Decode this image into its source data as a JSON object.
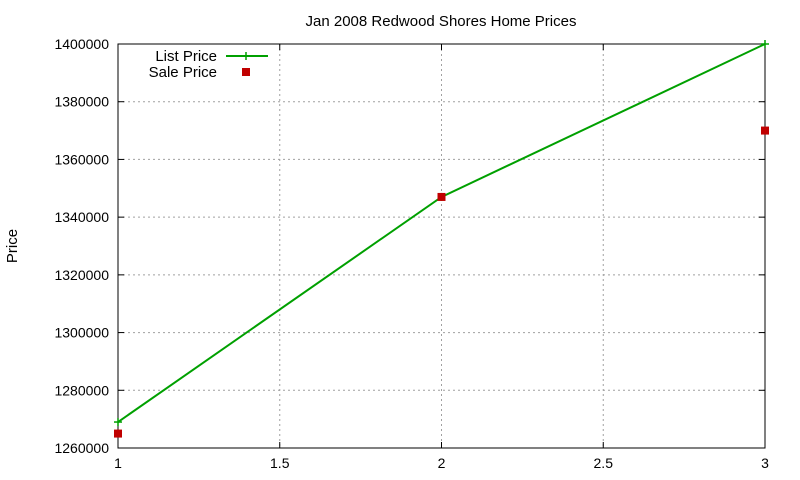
{
  "chart_data": {
    "type": "line",
    "title": "Jan 2008 Redwood Shores Home Prices",
    "xlabel": "",
    "ylabel": "Price",
    "xlim": [
      1,
      3
    ],
    "ylim": [
      1260000,
      1400000
    ],
    "x_ticks": [
      1,
      1.5,
      2,
      2.5,
      3
    ],
    "x_tick_labels": [
      "1",
      "1.5",
      "2",
      "2.5",
      "3"
    ],
    "y_ticks": [
      1260000,
      1280000,
      1300000,
      1320000,
      1340000,
      1360000,
      1380000,
      1400000
    ],
    "y_tick_labels": [
      "1260000",
      "1280000",
      "1300000",
      "1320000",
      "1340000",
      "1360000",
      "1380000",
      "1400000"
    ],
    "grid": true,
    "legend_position": "top-left",
    "series": [
      {
        "name": "List Price",
        "style": "linespoints",
        "marker": "plus",
        "color": "#00a000",
        "x": [
          1,
          2,
          3
        ],
        "y": [
          1269000,
          1347000,
          1400000
        ]
      },
      {
        "name": "Sale Price",
        "style": "points",
        "marker": "square",
        "color": "#c00000",
        "x": [
          1,
          2,
          3
        ],
        "y": [
          1265000,
          1347000,
          1370000
        ]
      }
    ]
  }
}
